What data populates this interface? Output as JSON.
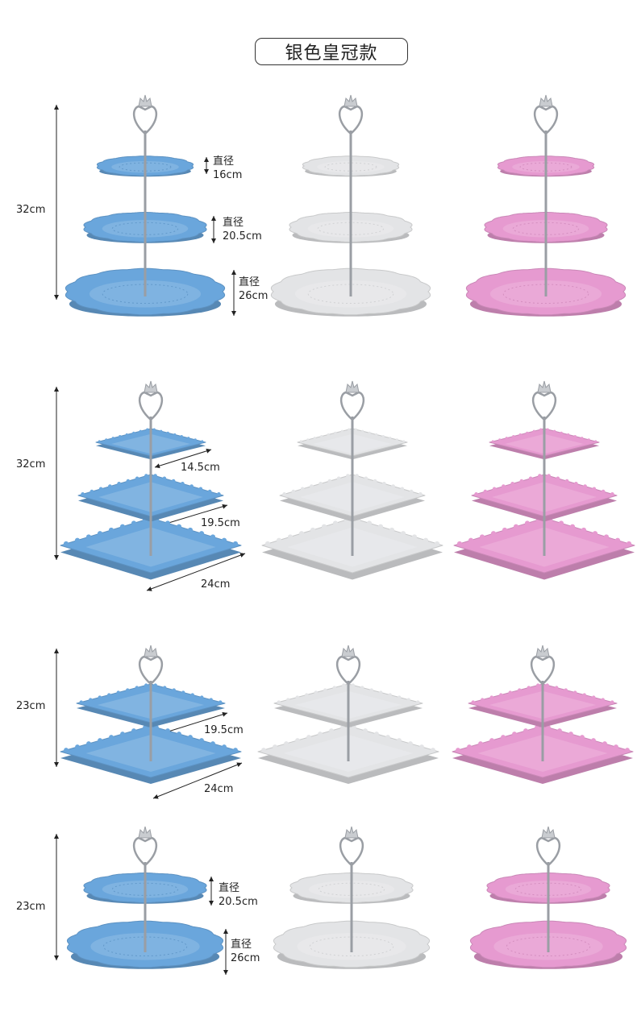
{
  "title": "银色皇冠款",
  "colors": {
    "blue": "#6aa6dc",
    "white": "#e3e4e6",
    "pink": "#e69ad0",
    "silver": "#9a9ea4"
  },
  "variants": [
    "blue",
    "white",
    "pink"
  ],
  "rows": [
    {
      "shape": "round",
      "tiers": 3,
      "height": "32cm",
      "dims": [
        {
          "label": "直径",
          "value": "16cm"
        },
        {
          "label": "直径",
          "value": "20.5cm"
        },
        {
          "label": "直径",
          "value": "26cm"
        }
      ]
    },
    {
      "shape": "square",
      "tiers": 3,
      "height": "32cm",
      "dims": [
        {
          "value": "14.5cm"
        },
        {
          "value": "19.5cm"
        },
        {
          "value": "24cm"
        }
      ]
    },
    {
      "shape": "square",
      "tiers": 2,
      "height": "23cm",
      "dims": [
        {
          "value": "19.5cm"
        },
        {
          "value": "24cm"
        }
      ]
    },
    {
      "shape": "round",
      "tiers": 2,
      "height": "23cm",
      "dims": [
        {
          "label": "直径",
          "value": "20.5cm"
        },
        {
          "label": "直径",
          "value": "26cm"
        }
      ]
    }
  ]
}
